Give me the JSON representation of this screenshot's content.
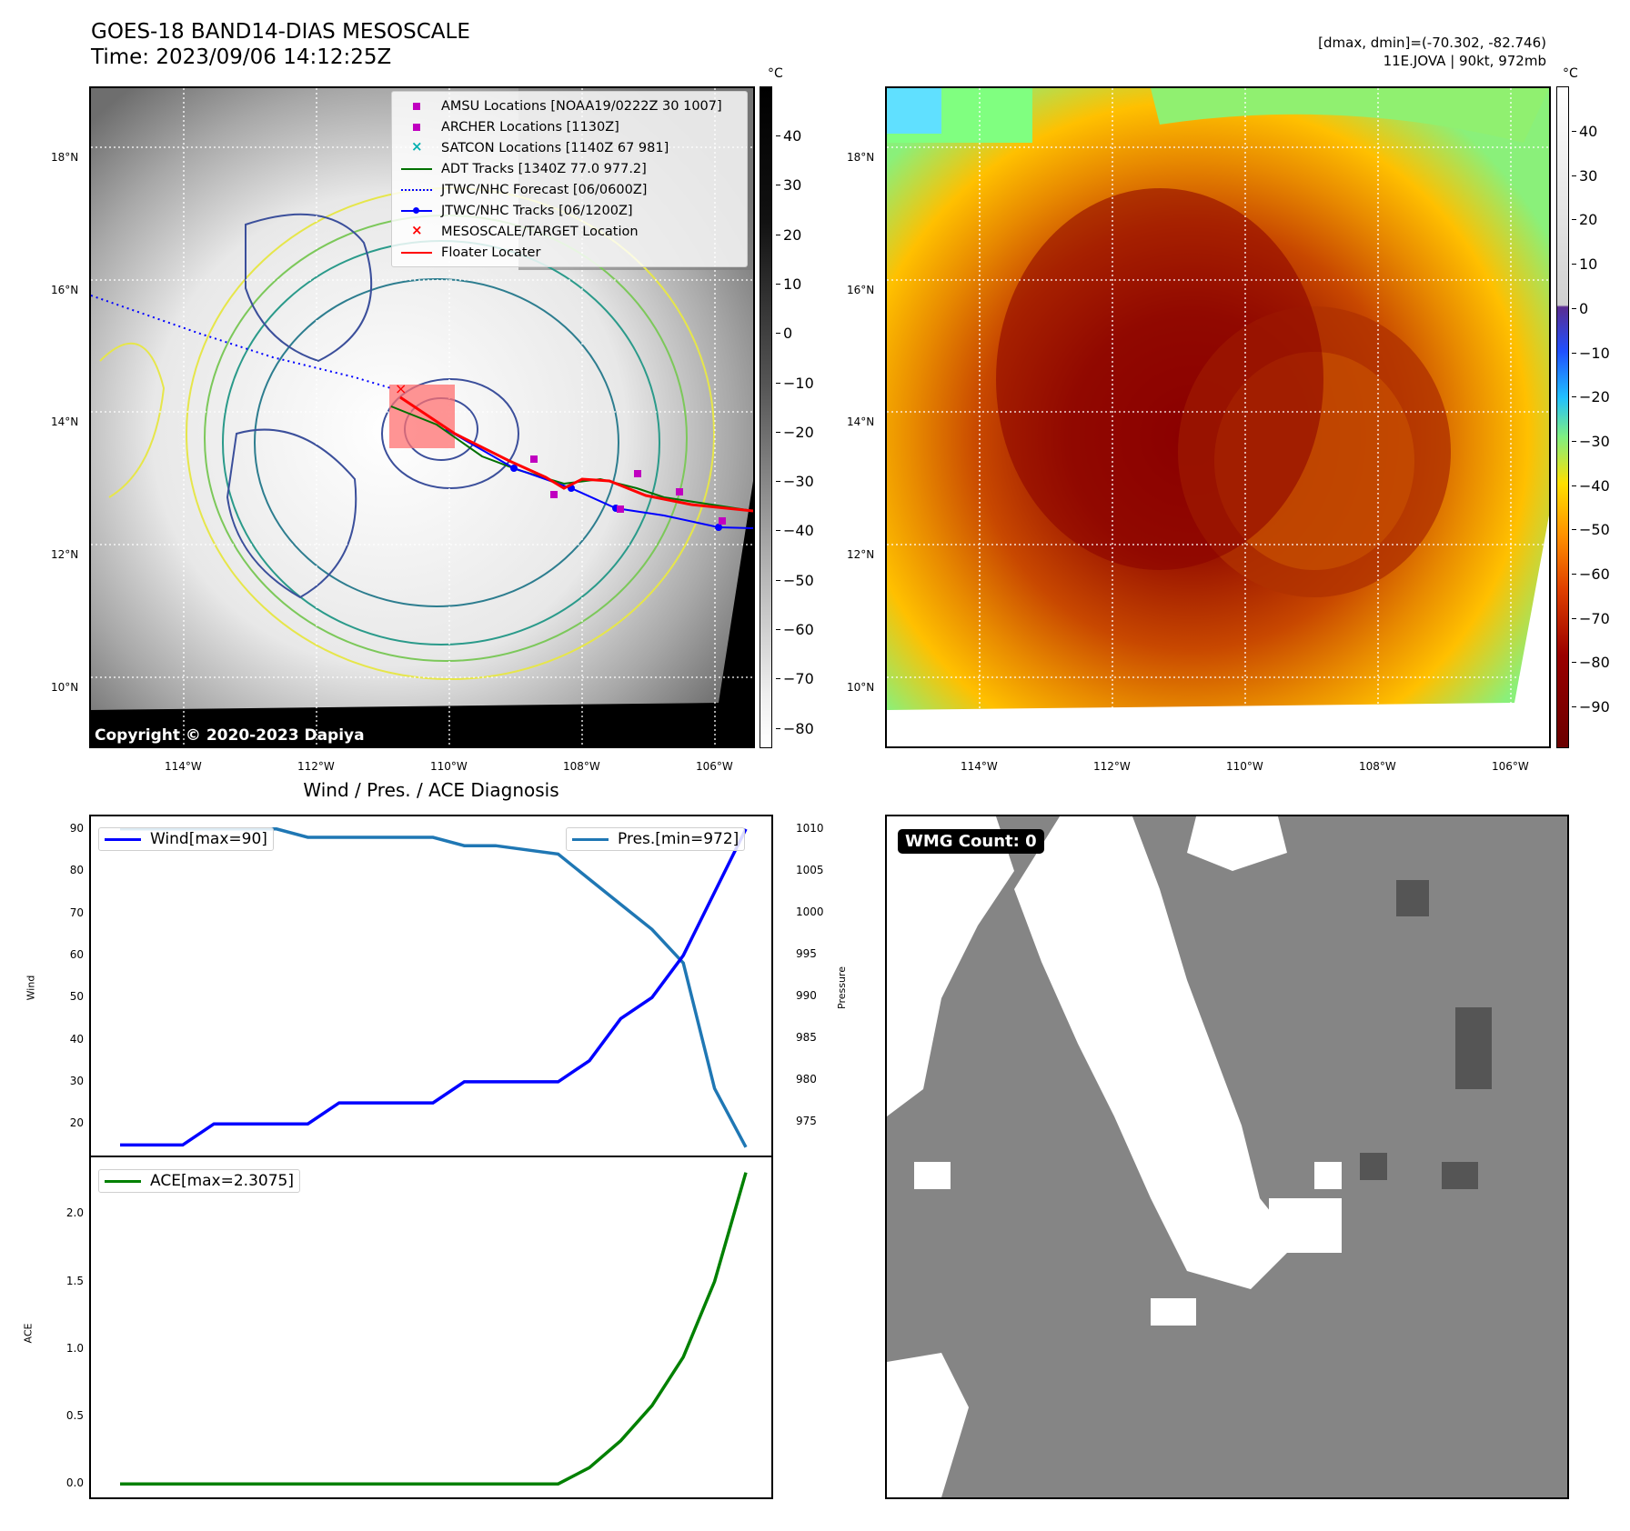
{
  "header": {
    "title": "GOES-18 BAND14-DIAS MESOSCALE",
    "time": "Time: 2023/09/06 14:12:25Z",
    "dmax_dmin": "[dmax, dmin]=(-70.302, -82.746)",
    "storm": "11E.JOVA | 90kt, 972mb"
  },
  "map_axes": {
    "lat_labels": [
      "18°N",
      "16°N",
      "14°N",
      "12°N",
      "10°N"
    ],
    "lon_labels": [
      "114°W",
      "112°W",
      "110°W",
      "108°W",
      "106°W"
    ]
  },
  "colorbar_gray": {
    "unit": "°C",
    "ticks": [
      "40",
      "30",
      "20",
      "10",
      "0",
      "−10",
      "−20",
      "−30",
      "−40",
      "−50",
      "−60",
      "−70",
      "−80"
    ]
  },
  "colorbar_color": {
    "unit": "°C",
    "ticks": [
      "40",
      "30",
      "20",
      "10",
      "0",
      "−10",
      "−20",
      "−30",
      "−40",
      "−50",
      "−60",
      "−70",
      "−80",
      "−90"
    ]
  },
  "map_legend": {
    "items": [
      {
        "label": "AMSU Locations [NOAA19/0222Z 30 1007]",
        "color": "#c000c0"
      },
      {
        "label": "ARCHER Locations [1130Z]",
        "color": "#c000c0"
      },
      {
        "label": "SATCON Locations [1140Z 67 981]",
        "color": "#00b0b0"
      },
      {
        "label": "ADT Tracks [1340Z 77.0 977.2]",
        "color": "#007000"
      },
      {
        "label": "JTWC/NHC Forecast [06/0600Z]",
        "color": "#0000ff"
      },
      {
        "label": "JTWC/NHC Tracks [06/1200Z]",
        "color": "#0000ff"
      },
      {
        "label": "MESOSCALE/TARGET Location",
        "color": "#ff0000"
      },
      {
        "label": "Floater Locater",
        "color": "#ff0000"
      }
    ]
  },
  "copyright": "Copyright © 2020-2023 Dapiya",
  "diagnosis": {
    "title": "Wind / Pres. / ACE Diagnosis",
    "wind_ylabel": "Wind",
    "pres_ylabel": "Pressure",
    "ace_ylabel": "ACE",
    "wind_legend": "Wind[max=90]",
    "pres_legend": "Pres.[min=972]",
    "ace_legend": "ACE[max=2.3075]",
    "wind_ticks": [
      "90",
      "80",
      "70",
      "60",
      "50",
      "40",
      "30",
      "20"
    ],
    "pres_ticks": [
      "1010",
      "1005",
      "1000",
      "995",
      "990",
      "985",
      "980",
      "975"
    ],
    "ace_ticks": [
      "2.0",
      "1.5",
      "1.0",
      "0.5",
      "0.0"
    ]
  },
  "wmg": {
    "label": "WMG Count: 0"
  },
  "chart_data": [
    {
      "type": "line",
      "title": "Wind / Pres. / ACE Diagnosis",
      "ylabel": "Wind",
      "y2label": "Pressure",
      "ylim": [
        12.5,
        93
      ],
      "y2lim": [
        971,
        1011.5
      ],
      "series": [
        {
          "name": "Wind[max=90]",
          "color": "#0000ff",
          "values": [
            15,
            15,
            15,
            20,
            20,
            20,
            20,
            25,
            25,
            25,
            25,
            30,
            30,
            30,
            30,
            35,
            45,
            50,
            60,
            75,
            90
          ]
        },
        {
          "name": "Pres.[min=972]",
          "color": "#1f77b4",
          "axis": "right",
          "values": [
            1010,
            1010,
            1010,
            1010,
            1010,
            1010,
            1009,
            1009,
            1009,
            1009,
            1009,
            1008,
            1008,
            1007.5,
            1007,
            1004,
            1001,
            998,
            994,
            979,
            972
          ]
        }
      ]
    },
    {
      "type": "line",
      "ylabel": "ACE",
      "ylim": [
        -0.1,
        2.42
      ],
      "series": [
        {
          "name": "ACE[max=2.3075]",
          "color": "#008000",
          "values": [
            0,
            0,
            0,
            0,
            0,
            0,
            0,
            0,
            0,
            0,
            0,
            0,
            0,
            0,
            0,
            0.12,
            0.32,
            0.58,
            0.94,
            1.5,
            2.3075
          ]
        }
      ]
    }
  ]
}
